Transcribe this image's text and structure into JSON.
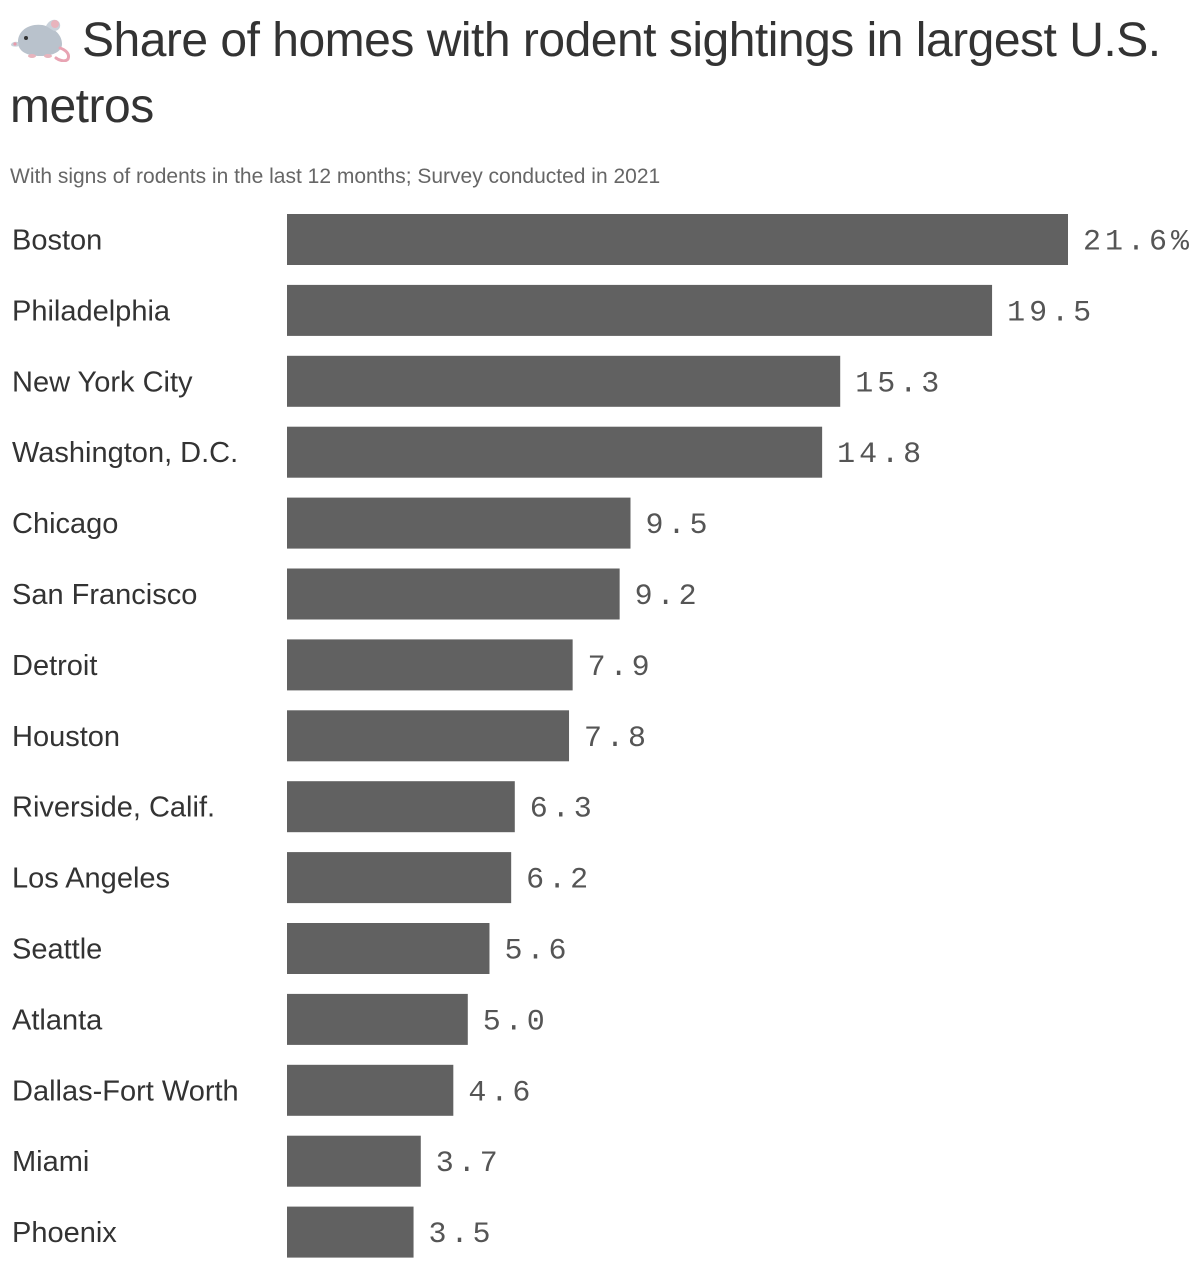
{
  "header": {
    "title_icon": "rat-icon",
    "title": "Share of homes with rodent sightings in largest U.S. metros",
    "subtitle": "With signs of rodents in the last 12 months; Survey conducted in 2021"
  },
  "colors": {
    "bar": "#616161",
    "title": "#333333",
    "subtitle": "#666666",
    "value_label": "#555555"
  },
  "chart_data": {
    "type": "bar",
    "orientation": "horizontal",
    "title": "Share of homes with rodent sightings in largest U.S. metros",
    "subtitle": "With signs of rodents in the last 12 months; Survey conducted in 2021",
    "categories": [
      "Boston",
      "Philadelphia",
      "New York City",
      "Washington, D.C.",
      "Chicago",
      "San Francisco",
      "Detroit",
      "Houston",
      "Riverside, Calif.",
      "Los Angeles",
      "Seattle",
      "Atlanta",
      "Dallas-Fort Worth",
      "Miami",
      "Phoenix"
    ],
    "values": [
      21.6,
      19.5,
      15.3,
      14.8,
      9.5,
      9.2,
      7.9,
      7.8,
      6.3,
      6.2,
      5.6,
      5.0,
      4.6,
      3.7,
      3.5
    ],
    "value_labels": [
      "21.6%",
      "19.5",
      "15.3",
      "14.8",
      "9.5",
      "9.2",
      "7.9",
      "7.8",
      "6.3",
      "6.2",
      "5.6",
      "5.0",
      "4.6",
      "3.7",
      "3.5"
    ],
    "xlim": [
      0,
      21.6
    ],
    "unit": "%",
    "grid": false,
    "legend": "none"
  }
}
